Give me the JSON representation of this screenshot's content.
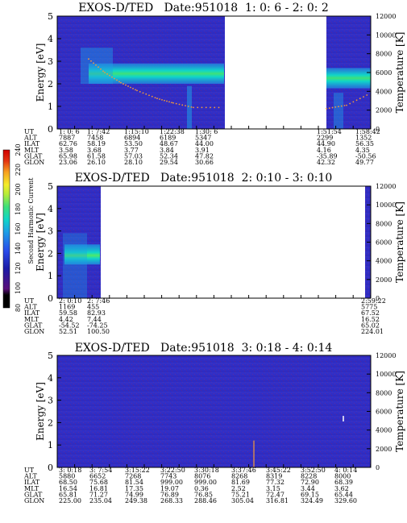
{
  "chart_data": [
    {
      "type": "heatmap",
      "title": "EXOS-D/TED   Date:951018  1: 0: 6 - 2: 0: 2",
      "ylabel": "Energy [eV]",
      "y2label": "Temperature [K]",
      "ylim": [
        0,
        5
      ],
      "y2lim": [
        0,
        12000
      ],
      "yticks": [
        0,
        1,
        2,
        3,
        4,
        5
      ],
      "y2ticks": [
        0,
        2000,
        4000,
        6000,
        8000,
        10000,
        12000
      ],
      "data_gap": true,
      "info_rows": [
        {
          "label": "UT",
          "values": [
            "1: 0: 6",
            "1: 7:42",
            "1:15:10",
            "1:22:38",
            "1:30: 6",
            "1:51:54",
            "1:58:42"
          ]
        },
        {
          "label": "ALT",
          "values": [
            "7887",
            "7458",
            "6894",
            "6189",
            "5347",
            "2299",
            "1352"
          ]
        },
        {
          "label": "ILAT",
          "values": [
            "62.76",
            "58.19",
            "53.50",
            "48.67",
            "44.00",
            "44.90",
            "56.35"
          ]
        },
        {
          "label": "MLT",
          "values": [
            "3.58",
            "3.68",
            "3.77",
            "3.84",
            "3.91",
            "4.16",
            "4.35"
          ]
        },
        {
          "label": "GLAT",
          "values": [
            "65.98",
            "61.58",
            "57.03",
            "52.34",
            "47.82",
            "-35.89",
            "-50.56"
          ]
        },
        {
          "label": "GLON",
          "values": [
            "23.06",
            "26.10",
            "28.10",
            "29.54",
            "30.66",
            "42.32",
            "49.77"
          ]
        }
      ]
    },
    {
      "type": "heatmap",
      "title": "EXOS-D/TED   Date:951018  2: 0:10 - 3: 0:10",
      "ylabel": "Energy [eV]",
      "y2label": "Temperature [K]",
      "ylim": [
        0,
        5
      ],
      "y2lim": [
        0,
        12000
      ],
      "yticks": [
        0,
        1,
        2,
        3,
        4,
        5
      ],
      "y2ticks": [
        0,
        2000,
        4000,
        6000,
        8000,
        10000,
        12000
      ],
      "info_rows": [
        {
          "label": "UT",
          "values": [
            "2: 0:10",
            "2: 7:46",
            "2:59:22"
          ]
        },
        {
          "label": "ALT",
          "values": [
            "1169",
            "455",
            "5775"
          ]
        },
        {
          "label": "ILAT",
          "values": [
            "59.58",
            "82.93",
            "67.52"
          ]
        },
        {
          "label": "MLT",
          "values": [
            "4.42",
            "7.44",
            "16.52"
          ]
        },
        {
          "label": "GLAT",
          "values": [
            "-54.52",
            "-74.25",
            "65.02"
          ]
        },
        {
          "label": "GLON",
          "values": [
            "52.51",
            "100.50",
            "224.01"
          ]
        }
      ]
    },
    {
      "type": "heatmap",
      "title": "EXOS-D/TED   Date:951018  3: 0:18 - 4: 0:14",
      "ylabel": "Energy [eV]",
      "y2label": "Temperature [K]",
      "ylim": [
        0,
        5
      ],
      "y2lim": [
        0,
        12000
      ],
      "yticks": [
        0,
        1,
        2,
        3,
        4,
        5
      ],
      "y2ticks": [
        0,
        2000,
        4000,
        6000,
        8000,
        10000,
        12000
      ],
      "info_rows": [
        {
          "label": "UT",
          "values": [
            "3: 0:18",
            "3: 7:54",
            "3:15:22",
            "3:22:50",
            "3:30:18",
            "3:37:46",
            "3:45:22",
            "3:52:50",
            "4: 0:14"
          ]
        },
        {
          "label": "ALT",
          "values": [
            "5880",
            "6652",
            "7268",
            "7743",
            "8076",
            "8268",
            "8319",
            "8228",
            "8000"
          ]
        },
        {
          "label": "ILAT",
          "values": [
            "68.50",
            "75.68",
            "81.54",
            "999.00",
            "999.00",
            "81.69",
            "77.32",
            "72.90",
            "68.39"
          ]
        },
        {
          "label": "MLT",
          "values": [
            "16.54",
            "16.81",
            "17.35",
            "19.07",
            "0.36",
            "2.52",
            "3.15",
            "3.44",
            "3.62"
          ]
        },
        {
          "label": "GLAT",
          "values": [
            "65.81",
            "71.27",
            "74.99",
            "76.89",
            "76.85",
            "75.21",
            "72.47",
            "69.15",
            "65.44"
          ]
        },
        {
          "label": "GLON",
          "values": [
            "225.00",
            "235.04",
            "249.38",
            "268.33",
            "288.46",
            "305.04",
            "316.81",
            "324.49",
            "329.60"
          ]
        }
      ]
    }
  ],
  "colorbar": {
    "label": "Second Harmonic Current",
    "ticks": [
      "80",
      "100",
      "120",
      "140",
      "160",
      "180",
      "200",
      "220",
      "240"
    ],
    "colors": [
      "#000000",
      "#5a0f7a",
      "#1c1ca8",
      "#2a4bea",
      "#1e9ee6",
      "#10d6c8",
      "#3ee07a",
      "#b7ec38",
      "#f4ec2a",
      "#f7a020",
      "#e33412",
      "#d00000"
    ]
  }
}
